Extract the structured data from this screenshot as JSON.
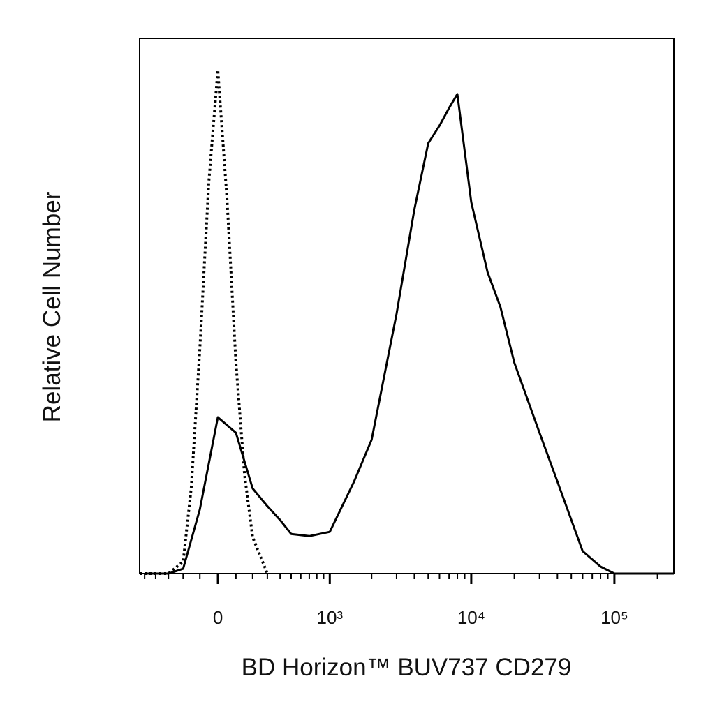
{
  "chart_data": {
    "type": "line",
    "x_label": "BD Horizon™ BUV737 CD279",
    "y_label": "Relative Cell Number",
    "xscale": "biexponential",
    "xlim": [
      -550,
      260000
    ],
    "ylim": [
      0,
      100
    ],
    "xticks": [
      0,
      {
        "value": 1000,
        "label": "10³"
      },
      {
        "value": 10000,
        "label": "10⁴"
      },
      {
        "value": 100000,
        "label": "10⁵"
      }
    ],
    "xminorticks": [
      -500,
      -400,
      -300,
      -200,
      -100,
      100,
      200,
      300,
      400,
      500,
      600,
      700,
      800,
      900,
      2000,
      3000,
      4000,
      5000,
      6000,
      7000,
      8000,
      9000,
      20000,
      30000,
      40000,
      50000,
      60000,
      70000,
      80000,
      90000,
      200000
    ],
    "series": [
      {
        "color": "#000000",
        "line_style": "solid",
        "x": [
          -500,
          -300,
          -200,
          -100,
          0,
          100,
          200,
          300,
          400,
          500,
          700,
          1000,
          1500,
          2000,
          3000,
          4000,
          5000,
          6000,
          7000,
          8000,
          10000,
          13000,
          16000,
          20000,
          30000,
          40000,
          60000,
          80000,
          100000,
          260000
        ],
        "values": [
          0,
          0,
          0.9,
          12,
          29.2,
          26.3,
          15.9,
          12.6,
          10,
          7.4,
          7,
          7.8,
          17.2,
          25,
          48.5,
          68,
          80.4,
          83.7,
          87,
          89.6,
          69.4,
          56.3,
          49.8,
          39.4,
          26.3,
          17.2,
          4.2,
          1.3,
          0,
          0
        ]
      },
      {
        "color": "#000000",
        "line_style": "dotted",
        "x": [
          -550,
          -300,
          -200,
          -150,
          -100,
          -50,
          0,
          50,
          100,
          150,
          200,
          300
        ],
        "values": [
          0,
          0,
          2.2,
          16,
          42,
          73,
          94.1,
          70,
          39.4,
          18.5,
          6.8,
          0
        ]
      }
    ]
  }
}
